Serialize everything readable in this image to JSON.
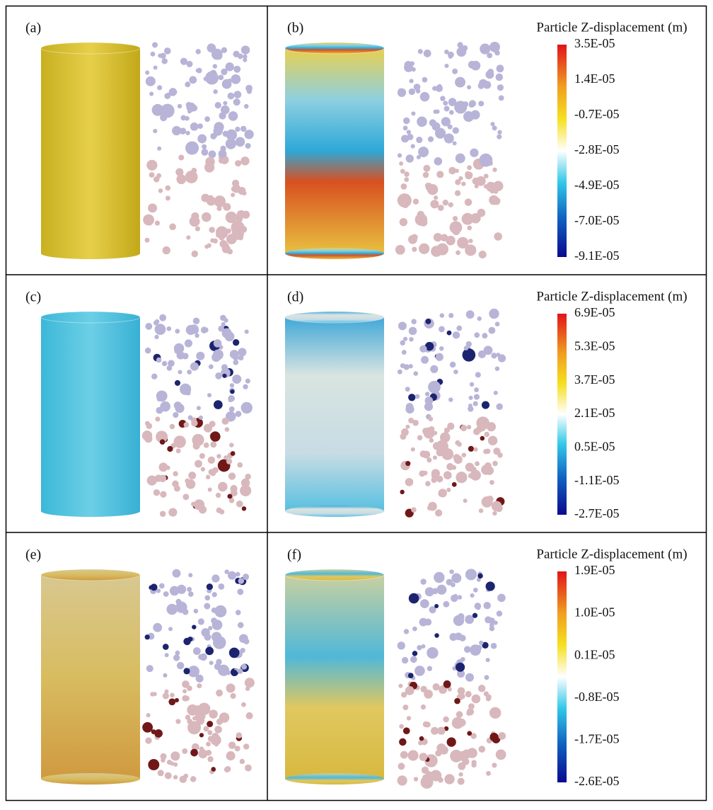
{
  "panels": [
    {
      "label": "(a)"
    },
    {
      "label": "(b)"
    },
    {
      "label": "(c)"
    },
    {
      "label": "(d)"
    },
    {
      "label": "(e)"
    },
    {
      "label": "(f)"
    }
  ],
  "colorbars": [
    {
      "title": "Particle Z-displacement (m)",
      "ticks": [
        "3.5E-05",
        "1.4E-05",
        "-0.7E-05",
        "-2.8E-05",
        "-4.9E-05",
        "-7.0E-05",
        "-9.1E-05"
      ]
    },
    {
      "title": "Particle Z-displacement (m)",
      "ticks": [
        "6.9E-05",
        "5.3E-05",
        "3.7E-05",
        "2.1E-05",
        "0.5E-05",
        "-1.1E-05",
        "-2.7E-05"
      ]
    },
    {
      "title": "Particle Z-displacement (m)",
      "ticks": [
        "1.9E-05",
        "1.0E-05",
        "0.1E-05",
        "-0.8E-05",
        "-1.7E-05",
        "-2.6E-05"
      ]
    }
  ]
}
